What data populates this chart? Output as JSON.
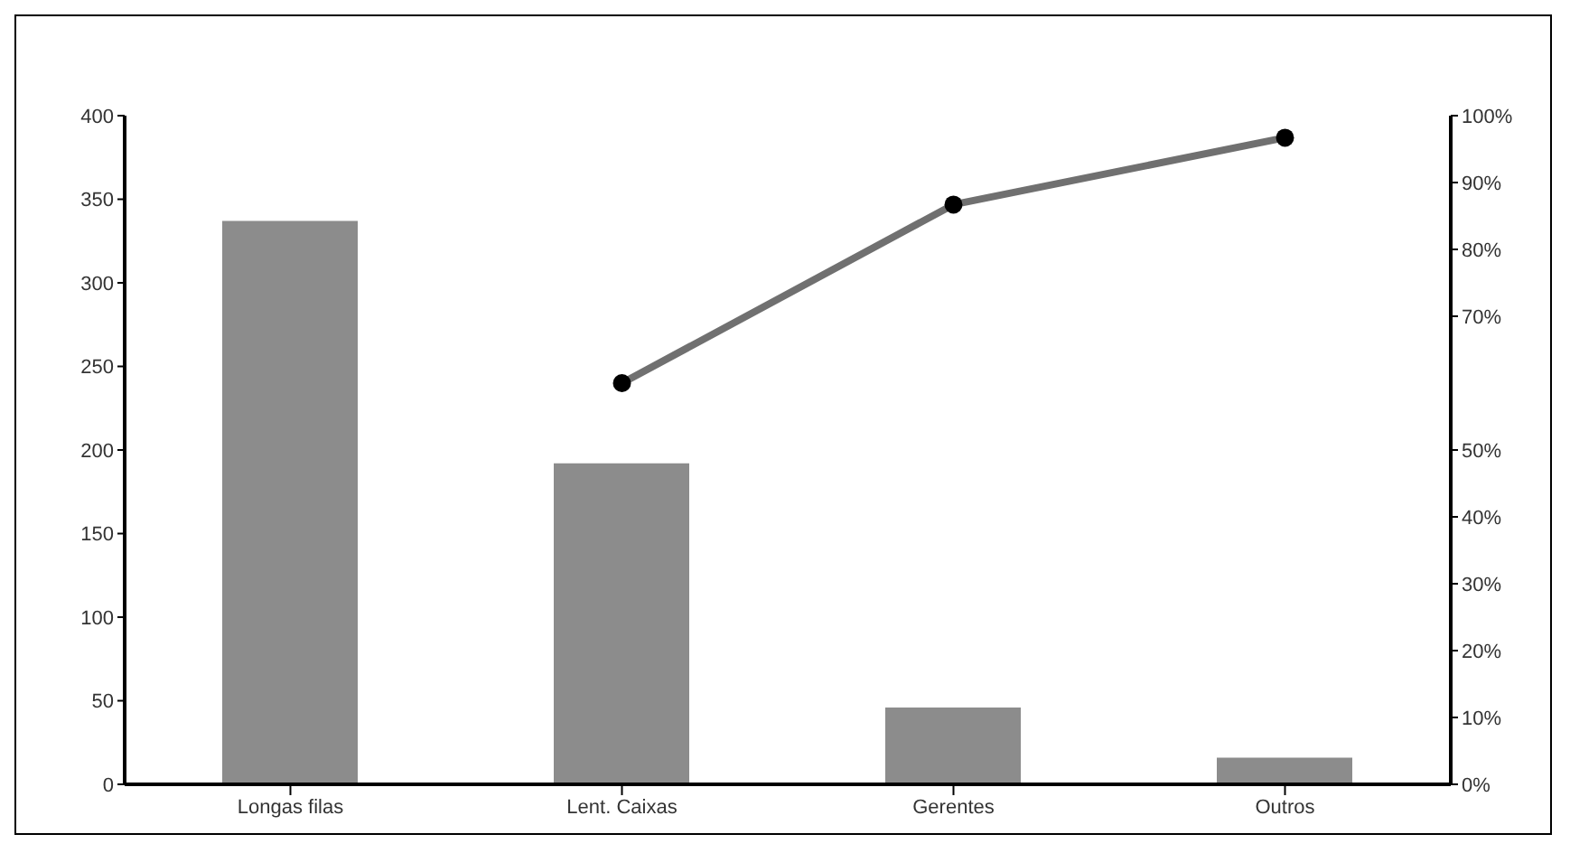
{
  "chart_data": {
    "type": "bar",
    "categories": [
      "Longas filas",
      "Lent. Caixas",
      "Gerentes",
      "Outros"
    ],
    "series": [
      {
        "color": "#8c8c8c",
        "values": [
          337,
          192,
          46,
          16
        ]
      },
      {
        "type": "line",
        "axis": "y2",
        "color": "#707070",
        "marker": "circle",
        "values": [
          null,
          60,
          86.7,
          96.7
        ]
      }
    ],
    "ylim": [
      0,
      400
    ],
    "yticks": [
      0,
      50,
      100,
      150,
      200,
      250,
      300,
      350,
      400
    ],
    "y2lim": [
      0,
      100
    ],
    "y2ticks": [
      {
        "value": 0,
        "label": "0%"
      },
      {
        "value": 10,
        "label": "10%"
      },
      {
        "value": 20,
        "label": "20%"
      },
      {
        "value": 30,
        "label": "30%"
      },
      {
        "value": 40,
        "label": "40%"
      },
      {
        "value": 50,
        "label": "50%"
      },
      {
        "value": 70,
        "label": "70%"
      },
      {
        "value": 80,
        "label": "80%"
      },
      {
        "value": 90,
        "label": "90%"
      },
      {
        "value": 100,
        "label": "100%"
      }
    ],
    "grid": false,
    "legend": false
  }
}
